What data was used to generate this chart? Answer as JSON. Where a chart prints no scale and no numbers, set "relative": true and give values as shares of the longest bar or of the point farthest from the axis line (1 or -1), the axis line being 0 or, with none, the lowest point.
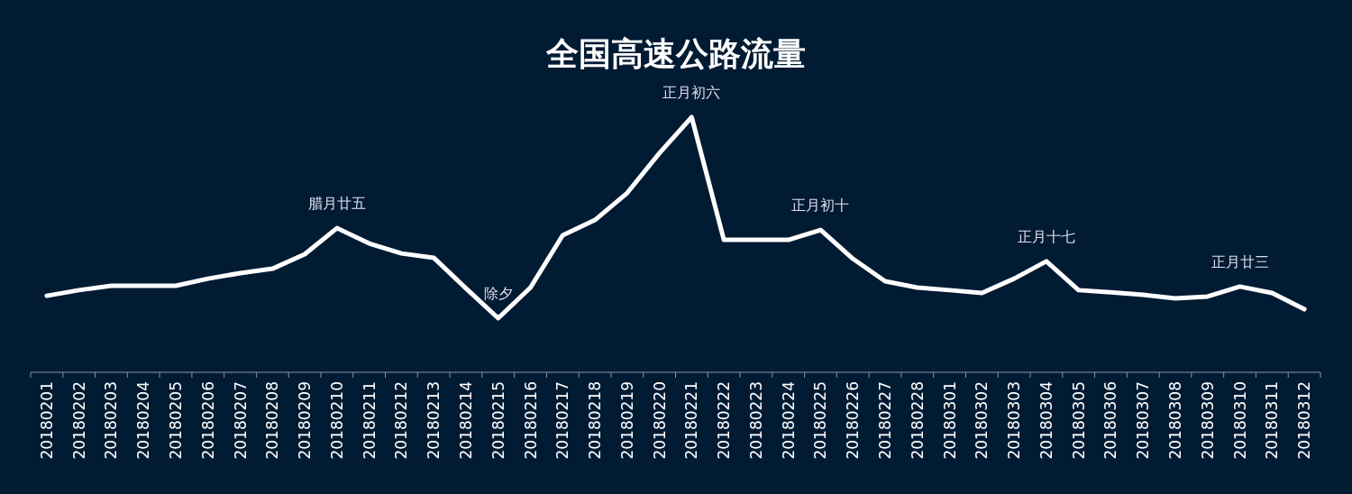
{
  "chart_data": {
    "type": "line",
    "title": "全国高速公路流量",
    "relative": true,
    "categories": [
      "20180201",
      "20180202",
      "20180203",
      "20180204",
      "20180205",
      "20180206",
      "20180207",
      "20180208",
      "20180209",
      "20180210",
      "20180211",
      "20180212",
      "20180213",
      "20180214",
      "20180215",
      "20180216",
      "20180217",
      "20180218",
      "20180219",
      "20180220",
      "20180221",
      "20180222",
      "20180223",
      "20180224",
      "20180225",
      "20180226",
      "20180227",
      "20180228",
      "20180301",
      "20180302",
      "20180303",
      "20180304",
      "20180305",
      "20180306",
      "20180307",
      "20180308",
      "20180309",
      "20180310",
      "20180311",
      "20180312"
    ],
    "series": [
      {
        "color": "#ffffff",
        "values": [
          0.3,
          0.322,
          0.339,
          0.339,
          0.339,
          0.367,
          0.389,
          0.406,
          0.463,
          0.565,
          0.505,
          0.466,
          0.449,
          0.329,
          0.212,
          0.332,
          0.537,
          0.597,
          0.703,
          0.859,
          1,
          0.519,
          0.519,
          0.519,
          0.558,
          0.445,
          0.357,
          0.332,
          0.322,
          0.311,
          0.367,
          0.435,
          0.322,
          0.314,
          0.304,
          0.29,
          0.297,
          0.336,
          0.311,
          0.247
        ]
      }
    ],
    "annotations": [
      {
        "text": "腊月廿五",
        "x": "20180210",
        "y": 0.565
      },
      {
        "text": "除夕",
        "x": "20180215",
        "y": 0.212
      },
      {
        "text": "正月初六",
        "x": "20180221",
        "y": 1
      },
      {
        "text": "正月初十",
        "x": "20180225",
        "y": 0.558
      },
      {
        "text": "正月十七",
        "x": "20180304",
        "y": 0.435
      },
      {
        "text": "正月廿三",
        "x": "20180310",
        "y": 0.336
      }
    ],
    "grid": false,
    "marker": "none",
    "line_style": "solid"
  }
}
